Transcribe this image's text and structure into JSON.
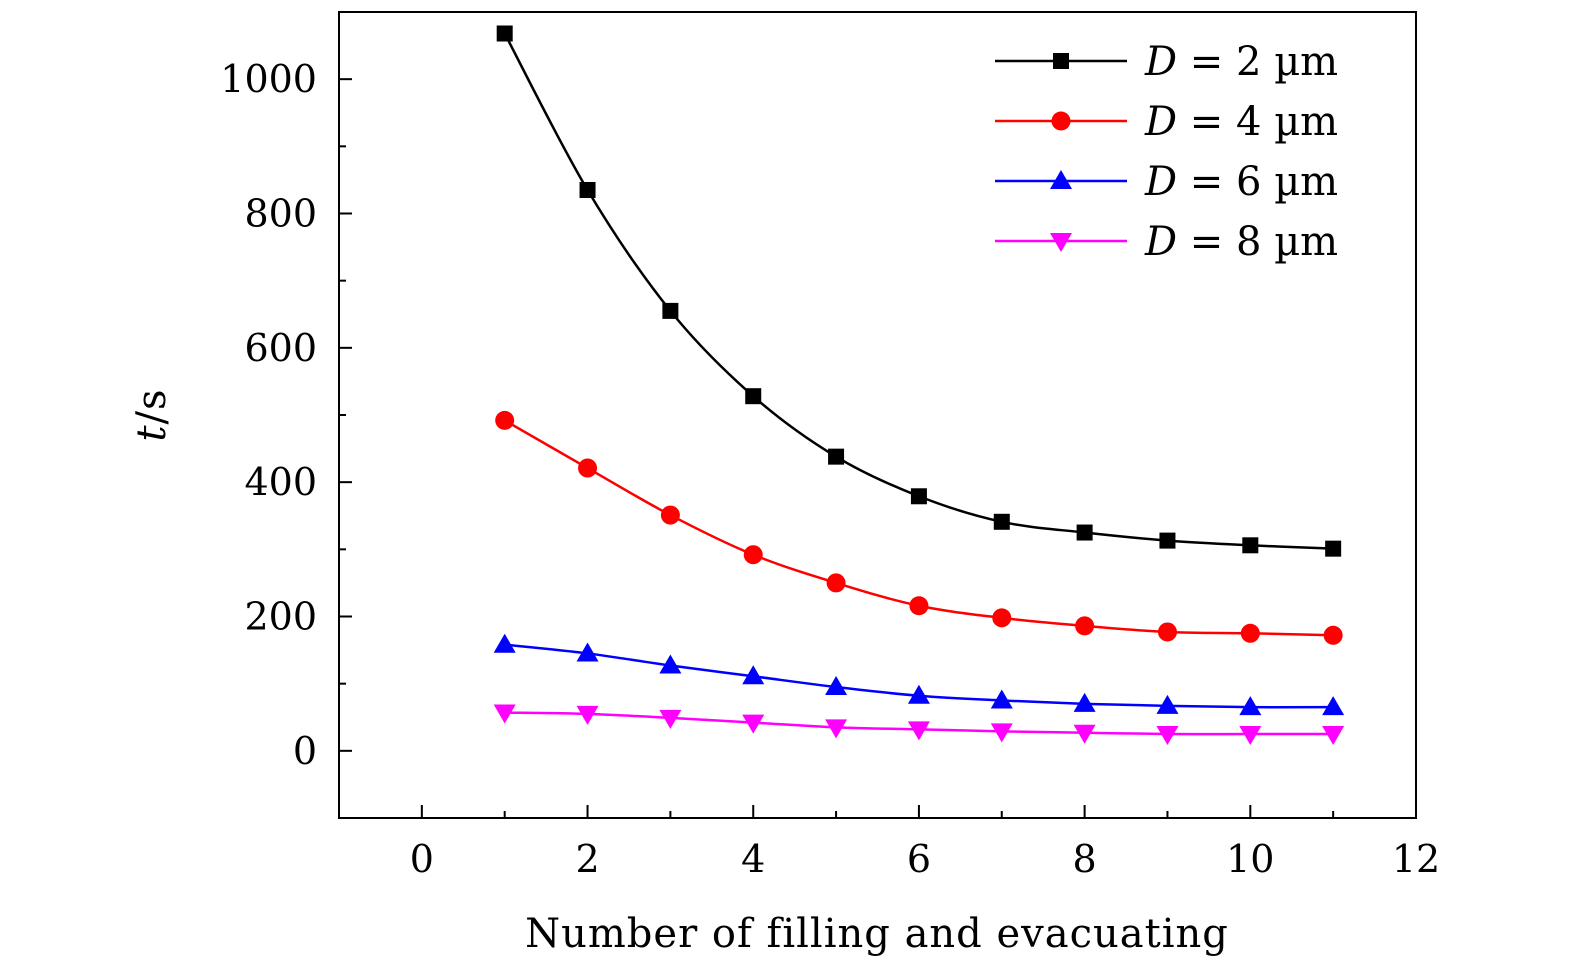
{
  "chart_data": {
    "type": "line",
    "xlabel": "Number of filling and evacuating",
    "ylabel_var": "t",
    "ylabel_unit": "/s",
    "xlim": [
      -1,
      12
    ],
    "ylim": [
      -100,
      1100
    ],
    "xticks": [
      0,
      2,
      4,
      6,
      8,
      10,
      12
    ],
    "xtick_labels": [
      "0",
      "2",
      "4",
      "6",
      "8",
      "10",
      "12"
    ],
    "yticks": [
      0,
      200,
      400,
      600,
      800,
      1000
    ],
    "ytick_labels": [
      "0",
      "200",
      "400",
      "600",
      "800",
      "1000"
    ],
    "grid": false,
    "legend_position": "top-right",
    "x": [
      1,
      2,
      3,
      4,
      5,
      6,
      7,
      8,
      9,
      10,
      11
    ],
    "series": [
      {
        "name": "D = 2 µm",
        "var": "D",
        "rest": " = 2 µm",
        "color": "#000000",
        "marker": "square",
        "values": [
          1068,
          835,
          655,
          528,
          438,
          379,
          341,
          325,
          313,
          306,
          301
        ]
      },
      {
        "name": "D = 4 µm",
        "var": "D",
        "rest": " = 4 µm",
        "color": "#ff0000",
        "marker": "circle",
        "values": [
          492,
          421,
          351,
          292,
          250,
          216,
          198,
          186,
          177,
          175,
          172
        ]
      },
      {
        "name": "D = 6 µm",
        "var": "D",
        "rest": " = 6 µm",
        "color": "#0000ff",
        "marker": "triangle-up",
        "values": [
          158,
          145,
          127,
          111,
          95,
          82,
          75,
          70,
          67,
          65,
          65
        ]
      },
      {
        "name": "D = 8 µm",
        "var": "D",
        "rest": " = 8 µm",
        "color": "#ff00ff",
        "marker": "triangle-down",
        "values": [
          57,
          55,
          49,
          42,
          35,
          32,
          29,
          27,
          25,
          25,
          25
        ]
      }
    ]
  }
}
